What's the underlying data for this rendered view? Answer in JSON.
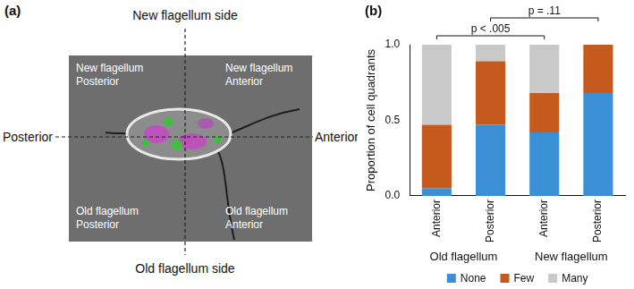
{
  "panel_a": {
    "label": "(a)",
    "top": "New flagellum side",
    "bottom": "Old flagellum side",
    "left": "Posterior",
    "right": "Anterior",
    "quadrants": {
      "top_left": [
        "New flagellum",
        "Posterior"
      ],
      "top_right": [
        "New flagellum",
        "Anterior"
      ],
      "bottom_left": [
        "Old flagellum",
        "Posterior"
      ],
      "bottom_right": [
        "Old flagellum",
        "Anterior"
      ]
    }
  },
  "chart_data": {
    "type": "bar",
    "label": "(b)",
    "stacked": true,
    "grid": false,
    "legend": "bottom",
    "y_label": "Proportion of cell quadrants",
    "categories": [
      "Anterior",
      "Posterior",
      "Anterior",
      "Posterior"
    ],
    "category_groups": [
      "Old flagellum",
      "Old flagellum",
      "New flagellum",
      "New flagellum"
    ],
    "series": [
      {
        "name": "None",
        "color": "#3b8fd4",
        "values": [
          0.05,
          0.47,
          0.42,
          0.68
        ]
      },
      {
        "name": "Few",
        "color": "#c55a1e",
        "values": [
          0.42,
          0.42,
          0.26,
          0.32
        ]
      },
      {
        "name": "Many",
        "color": "#c9c9c9",
        "values": [
          0.53,
          0.11,
          0.32,
          0
        ]
      }
    ],
    "ylim": [
      0,
      1
    ],
    "yticks": [
      {
        "value": 0,
        "label": "0.0"
      },
      {
        "value": 0.5,
        "label": "0.5"
      },
      {
        "value": 1,
        "label": "1.0"
      }
    ],
    "annotations": [
      {
        "text": "p < .005",
        "from": 0,
        "to": 2
      },
      {
        "text": "p = .11",
        "from": 1,
        "to": 3
      }
    ]
  }
}
